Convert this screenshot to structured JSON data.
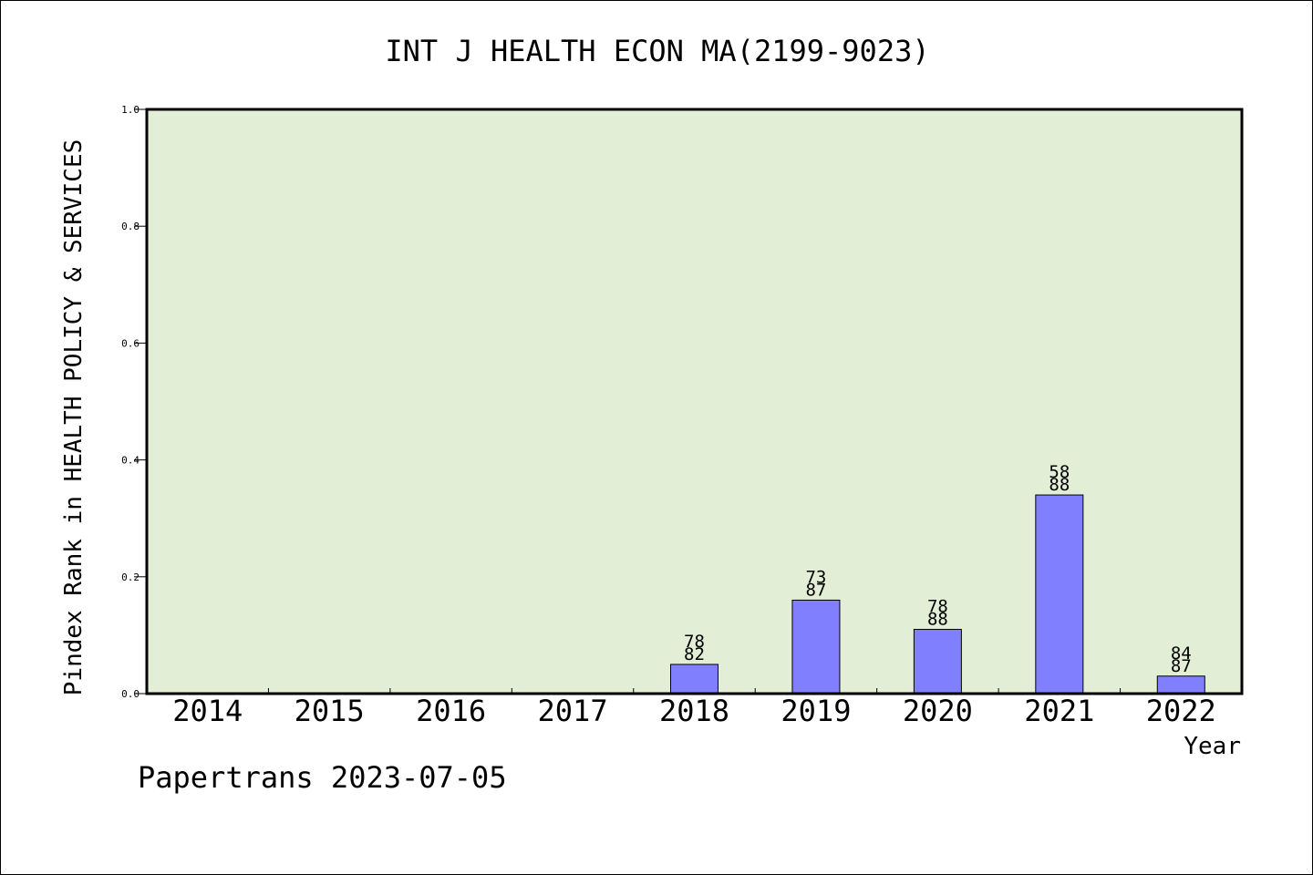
{
  "chart_data": {
    "type": "bar",
    "title": "INT J HEALTH ECON MA(2199-9023)",
    "xlabel": "Year",
    "ylabel": "Pindex Rank in HEALTH POLICY & SERVICES",
    "ylim": [
      0,
      1.0
    ],
    "y_ticks": [
      "0.0",
      "0.2",
      "0.4",
      "0.6",
      "0.8",
      "1.0"
    ],
    "categories": [
      "2014",
      "2015",
      "2016",
      "2017",
      "2018",
      "2019",
      "2020",
      "2021",
      "2022"
    ],
    "values": [
      null,
      null,
      null,
      null,
      0.05,
      0.16,
      0.11,
      0.34,
      0.03
    ],
    "bar_labels": [
      null,
      null,
      null,
      null,
      [
        "78",
        "82"
      ],
      [
        "73",
        "87"
      ],
      [
        "78",
        "88"
      ],
      [
        "58",
        "88"
      ],
      [
        "84",
        "87"
      ]
    ],
    "grid": false,
    "colors": {
      "plot_background": "#e2efd6",
      "bar_fill": "#8080ff",
      "bar_stroke": "#000000",
      "axis": "#000000"
    }
  },
  "footer": "Papertrans 2023-07-05"
}
